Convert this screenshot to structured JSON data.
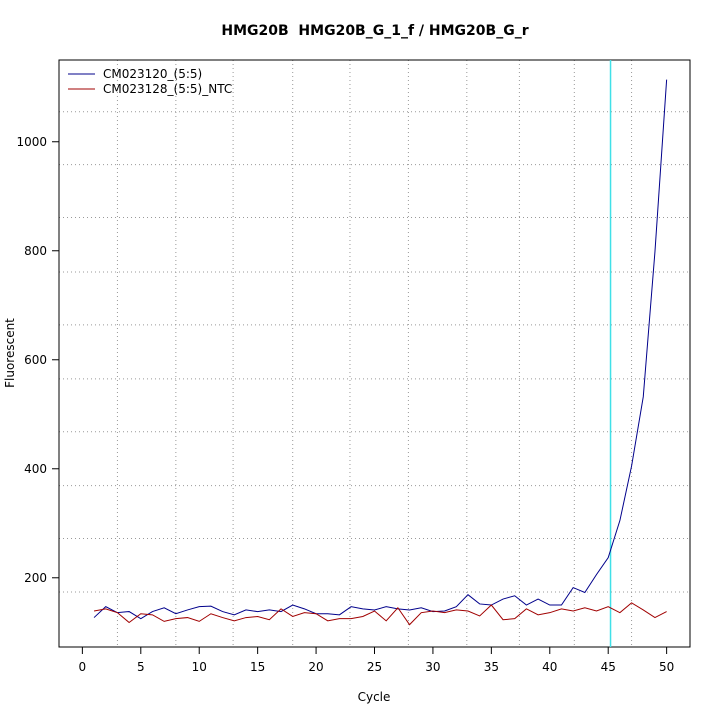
{
  "chart_data": {
    "type": "line",
    "title": "HMG20B  HMG20B_G_1_f / HMG20B_G_r",
    "x_label": "Cycle",
    "y_label": "Fluorescent",
    "x": [
      1,
      2,
      3,
      4,
      5,
      6,
      7,
      8,
      9,
      10,
      11,
      12,
      13,
      14,
      15,
      16,
      17,
      18,
      19,
      20,
      21,
      22,
      23,
      24,
      25,
      26,
      27,
      28,
      29,
      30,
      31,
      32,
      33,
      34,
      35,
      36,
      37,
      38,
      39,
      40,
      41,
      42,
      43,
      44,
      45,
      46,
      47,
      48,
      49,
      50
    ],
    "series": [
      {
        "name": "CM023120_(5:5)",
        "color": "#00008b",
        "values": [
          127,
          147,
          136,
          138,
          125,
          138,
          145,
          134,
          141,
          147,
          148,
          138,
          132,
          141,
          138,
          141,
          138,
          150,
          143,
          134,
          134,
          132,
          147,
          143,
          141,
          147,
          143,
          141,
          145,
          138,
          139,
          147,
          169,
          152,
          150,
          161,
          167,
          150,
          161,
          150,
          150,
          182,
          173,
          206,
          237,
          305,
          405,
          532,
          798,
          1114
        ]
      },
      {
        "name": "CM023128_(5:5)_NTC",
        "color": "#a00000",
        "values": [
          139,
          143,
          136,
          118,
          134,
          132,
          120,
          125,
          127,
          120,
          134,
          127,
          121,
          127,
          129,
          123,
          143,
          129,
          136,
          134,
          121,
          125,
          125,
          129,
          139,
          121,
          145,
          114,
          136,
          139,
          136,
          141,
          139,
          130,
          150,
          123,
          125,
          143,
          132,
          136,
          143,
          139,
          145,
          139,
          147,
          136,
          154,
          141,
          127,
          138
        ]
      }
    ],
    "xlim": [
      -2,
      52
    ],
    "ylim": [
      73,
      1150
    ],
    "xticks": [
      0,
      5,
      10,
      15,
      20,
      25,
      30,
      35,
      40,
      45,
      50
    ],
    "yticks": [
      200,
      400,
      600,
      800,
      1000
    ],
    "grid_x": [
      3,
      8,
      12.9,
      18,
      22.9,
      27.9,
      32.9,
      37.4,
      42.1,
      47
    ],
    "grid_y": [
      174,
      272,
      369,
      468,
      565,
      664,
      761,
      861,
      958,
      1055
    ],
    "threshold_x": 45.2,
    "threshold_color": "#40e0e8",
    "legend": "top-left"
  }
}
